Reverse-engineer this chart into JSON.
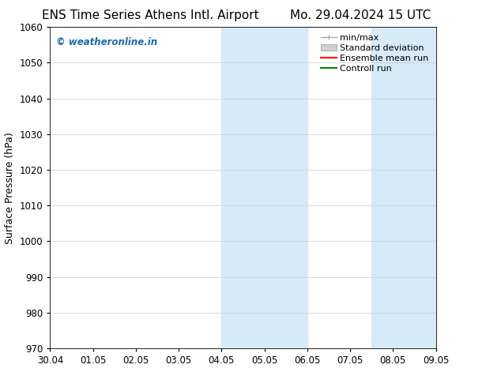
{
  "title_left": "ENS Time Series Athens Intl. Airport",
  "title_right": "Mo. 29.04.2024 15 UTC",
  "ylabel": "Surface Pressure (hPa)",
  "ylim": [
    970,
    1060
  ],
  "yticks": [
    970,
    980,
    990,
    1000,
    1010,
    1020,
    1030,
    1040,
    1050,
    1060
  ],
  "xtick_labels": [
    "30.04",
    "01.05",
    "02.05",
    "03.05",
    "04.05",
    "05.05",
    "06.05",
    "07.05",
    "08.05",
    "09.05"
  ],
  "shaded_regions": [
    {
      "xmin": 4.0,
      "xmax": 6.0
    },
    {
      "xmin": 7.5,
      "xmax": 9.0
    }
  ],
  "shade_color": "#d6eaf8",
  "watermark": "© weatheronline.in",
  "watermark_color": "#1a6bb5",
  "background_color": "#ffffff",
  "grid_color": "#cccccc",
  "legend_items": [
    {
      "label": "min/max",
      "type": "minmax"
    },
    {
      "label": "Standard deviation",
      "type": "stddev"
    },
    {
      "label": "Ensemble mean run",
      "type": "line",
      "color": "#ff0000"
    },
    {
      "label": "Controll run",
      "type": "line",
      "color": "#008000"
    }
  ],
  "title_fontsize": 11,
  "tick_fontsize": 8.5,
  "ylabel_fontsize": 9,
  "legend_fontsize": 8
}
